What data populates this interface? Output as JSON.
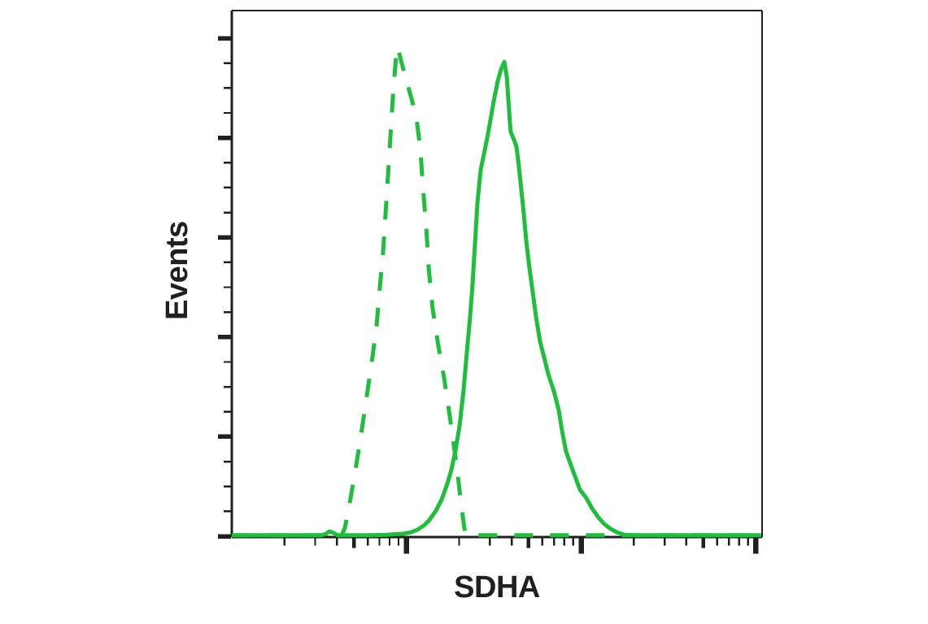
{
  "chart_data": {
    "type": "line",
    "subtype": "flow_cytometry_histogram",
    "title": "",
    "xlabel": "SDHA",
    "ylabel": "Events",
    "x_axis": {
      "scale": "log10",
      "decades_shown": 3,
      "numeric_labels_visible": false,
      "major_ticks_at_decade_boundaries": [
        1,
        2,
        3
      ],
      "medium_ticks_at_half_decade": [
        0.699,
        1.699,
        2.699
      ],
      "minor_tick_mantissas": [
        2,
        3,
        4,
        6,
        7,
        8,
        9
      ]
    },
    "y_axis": {
      "scale": "linear",
      "numeric_labels_visible": false,
      "major_tick_count": 6,
      "minor_ticks_between_majors": 3,
      "range_pct": [
        0,
        107
      ]
    },
    "legend": {
      "visible": false
    },
    "grid": false,
    "colors": {
      "curve": "#1fbf3e",
      "axis_and_text": "#231f20",
      "background": "#ffffff"
    },
    "series": [
      {
        "name": "dashed-histogram",
        "line_style": "dashed",
        "color": "#1fbf3e",
        "peak": {
          "x_decades": 0.945,
          "height_pct": 100
        },
        "points_x_decades_y_pct": [
          [
            0.0,
            0.2
          ],
          [
            0.3,
            0.2
          ],
          [
            0.56,
            0.2
          ],
          [
            0.628,
            0.2
          ],
          [
            0.647,
            1.7
          ],
          [
            0.67,
            5.8
          ],
          [
            0.703,
            12.5
          ],
          [
            0.74,
            20.8
          ],
          [
            0.773,
            28.7
          ],
          [
            0.805,
            36.5
          ],
          [
            0.829,
            43.2
          ],
          [
            0.847,
            50.7
          ],
          [
            0.866,
            58.1
          ],
          [
            0.884,
            68.1
          ],
          [
            0.903,
            78.9
          ],
          [
            0.922,
            89.7
          ],
          [
            0.936,
            96.4
          ],
          [
            0.945,
            100.0
          ],
          [
            0.954,
            99.3
          ],
          [
            0.973,
            96.7
          ],
          [
            1.001,
            93.0
          ],
          [
            1.033,
            88.9
          ],
          [
            1.061,
            84.4
          ],
          [
            1.08,
            78.9
          ],
          [
            1.094,
            71.4
          ],
          [
            1.113,
            63.1
          ],
          [
            1.127,
            54.8
          ],
          [
            1.15,
            46.5
          ],
          [
            1.182,
            39.0
          ],
          [
            1.215,
            32.4
          ],
          [
            1.243,
            25.7
          ],
          [
            1.266,
            19.9
          ],
          [
            1.29,
            13.6
          ],
          [
            1.313,
            6.6
          ],
          [
            1.331,
            1.7
          ],
          [
            1.341,
            0.2
          ],
          [
            1.6,
            0.2
          ],
          [
            2.0,
            0.2
          ],
          [
            2.5,
            0.2
          ],
          [
            3.03,
            0.2
          ]
        ]
      },
      {
        "name": "solid-histogram",
        "line_style": "solid",
        "color": "#1fbf3e",
        "peak": {
          "x_decades": 1.56,
          "height_pct": 97
        },
        "points_x_decades_y_pct": [
          [
            0.0,
            0.2
          ],
          [
            0.512,
            0.2
          ],
          [
            0.54,
            0.5
          ],
          [
            0.559,
            1.0
          ],
          [
            0.582,
            0.7
          ],
          [
            0.605,
            0.2
          ],
          [
            0.791,
            0.2
          ],
          [
            0.884,
            0.3
          ],
          [
            0.978,
            0.5
          ],
          [
            1.024,
            0.8
          ],
          [
            1.061,
            1.3
          ],
          [
            1.099,
            2.2
          ],
          [
            1.131,
            3.3
          ],
          [
            1.168,
            5.2
          ],
          [
            1.201,
            7.5
          ],
          [
            1.234,
            10.8
          ],
          [
            1.257,
            13.6
          ],
          [
            1.28,
            17.4
          ],
          [
            1.303,
            22.4
          ],
          [
            1.327,
            29.9
          ],
          [
            1.345,
            37.4
          ],
          [
            1.364,
            44.9
          ],
          [
            1.378,
            51.5
          ],
          [
            1.392,
            59.8
          ],
          [
            1.406,
            68.1
          ],
          [
            1.424,
            74.8
          ],
          [
            1.443,
            78.1
          ],
          [
            1.462,
            81.4
          ],
          [
            1.48,
            85.0
          ],
          [
            1.499,
            88.9
          ],
          [
            1.522,
            93.0
          ],
          [
            1.541,
            95.5
          ],
          [
            1.56,
            97.0
          ],
          [
            1.574,
            93.9
          ],
          [
            1.583,
            89.4
          ],
          [
            1.592,
            84.4
          ],
          [
            1.597,
            82.6
          ],
          [
            1.615,
            81.1
          ],
          [
            1.629,
            79.7
          ],
          [
            1.639,
            76.9
          ],
          [
            1.653,
            72.3
          ],
          [
            1.671,
            66.1
          ],
          [
            1.685,
            60.6
          ],
          [
            1.704,
            54.8
          ],
          [
            1.723,
            49.8
          ],
          [
            1.741,
            44.9
          ],
          [
            1.764,
            39.9
          ],
          [
            1.788,
            36.5
          ],
          [
            1.811,
            33.2
          ],
          [
            1.844,
            29.6
          ],
          [
            1.872,
            25.7
          ],
          [
            1.89,
            21.6
          ],
          [
            1.913,
            17.4
          ],
          [
            1.936,
            15.0
          ],
          [
            1.964,
            12.3
          ],
          [
            1.993,
            9.5
          ],
          [
            2.03,
            7.8
          ],
          [
            2.062,
            5.7
          ],
          [
            2.099,
            3.8
          ],
          [
            2.132,
            2.5
          ],
          [
            2.169,
            1.5
          ],
          [
            2.206,
            0.8
          ],
          [
            2.249,
            0.3
          ],
          [
            2.314,
            0.2
          ],
          [
            3.03,
            0.2
          ]
        ]
      }
    ]
  }
}
